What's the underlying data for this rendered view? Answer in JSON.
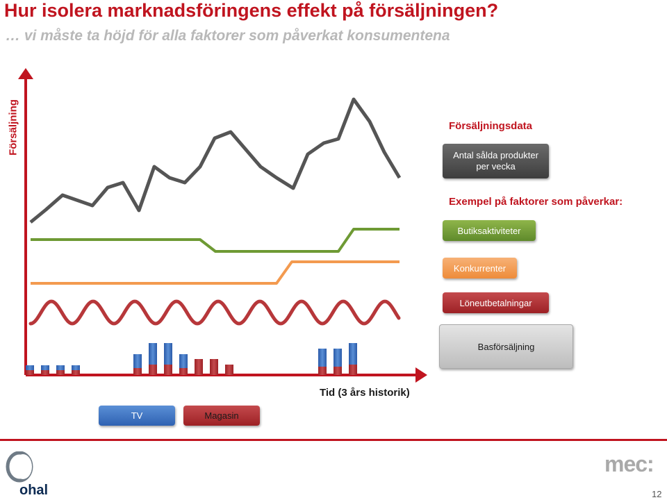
{
  "header": {
    "title": "Hur isolera marknadsföringens effekt på försäljningen?",
    "subtitle": "… vi måste ta höjd för alla faktorer som påverkat konsumentena"
  },
  "axes": {
    "ylabel": "Försäljning",
    "xlabel": "Tid (3 års historik)"
  },
  "legend": {
    "sales_heading": "Försäljningsdata",
    "sales_pill": "Antal sålda produkter per vecka",
    "factors_heading": "Exempel på faktorer som påverkar:",
    "store": "Butiksaktiviteter",
    "competitors": "Konkurrenter",
    "wages": "Löneutbetalningar",
    "base": "Basförsäljning",
    "tv": "TV",
    "magazine": "Magasin"
  },
  "colors": {
    "title": "#c0141f",
    "sales_line": "#555555",
    "store_line": "#6e9a34",
    "competitors_line": "#f39a4f",
    "wages_line": "#b7373a",
    "tv": "#3f73c4",
    "magazine": "#b82c30",
    "axis": "#c0141f"
  },
  "footer": {
    "left_logo": "ohal",
    "right_logo": "mec:",
    "page_number": "12"
  }
}
